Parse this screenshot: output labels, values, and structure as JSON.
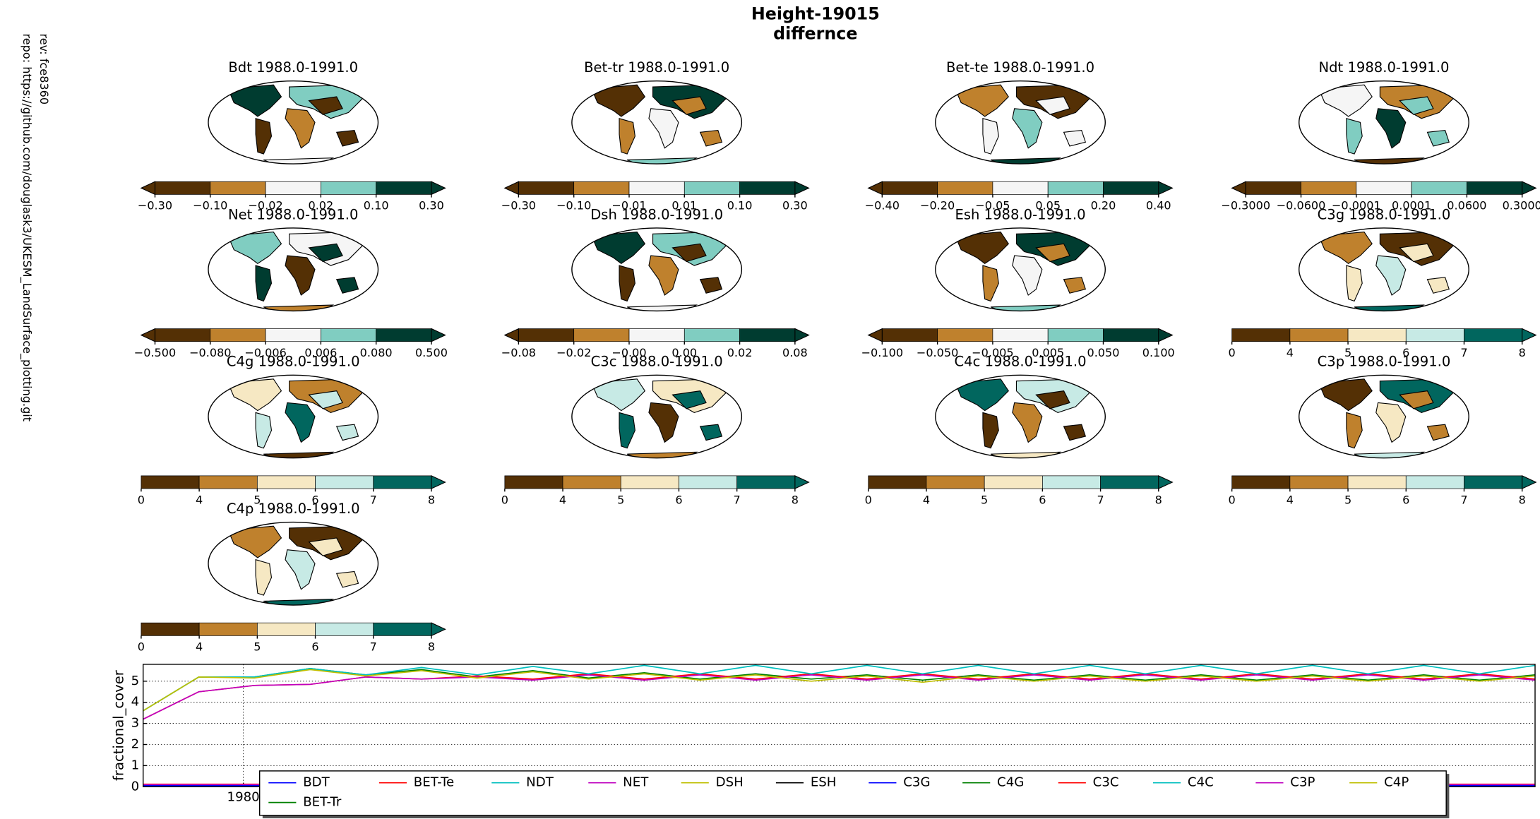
{
  "header": {
    "title": "Height-19015",
    "subtitle": "differnce",
    "rev": "rev:  fce8360",
    "repo": "repo: https://github.com/douglask3/UKESM_LandSurface_plotting.git"
  },
  "panels": [
    {
      "title": "Bdt 1988.0-1991.0",
      "extend": "both",
      "colors": [
        "#543005",
        "#bf812d",
        "#f5f5f5",
        "#80cdc1",
        "#003c30"
      ],
      "ticks": [
        {
          "value": -0.3,
          "label": "−0.30"
        },
        {
          "value": -0.1,
          "label": "−0.10"
        },
        {
          "value": -0.02,
          "label": "−0.02"
        },
        {
          "value": 0.02,
          "label": "0.02"
        },
        {
          "value": 0.1,
          "label": "0.10"
        },
        {
          "value": 0.3,
          "label": "0.30"
        }
      ]
    },
    {
      "title": "Bet-tr 1988.0-1991.0",
      "extend": "both",
      "colors": [
        "#543005",
        "#bf812d",
        "#f5f5f5",
        "#80cdc1",
        "#003c30"
      ],
      "ticks": [
        {
          "value": -0.3,
          "label": "−0.30"
        },
        {
          "value": -0.1,
          "label": "−0.10"
        },
        {
          "value": -0.01,
          "label": "−0.01"
        },
        {
          "value": 0.01,
          "label": "0.01"
        },
        {
          "value": 0.1,
          "label": "0.10"
        },
        {
          "value": 0.3,
          "label": "0.30"
        }
      ]
    },
    {
      "title": "Bet-te 1988.0-1991.0",
      "extend": "both",
      "colors": [
        "#543005",
        "#bf812d",
        "#f5f5f5",
        "#80cdc1",
        "#003c30"
      ],
      "ticks": [
        {
          "value": -0.4,
          "label": "−0.40"
        },
        {
          "value": -0.2,
          "label": "−0.20"
        },
        {
          "value": -0.05,
          "label": "−0.05"
        },
        {
          "value": 0.05,
          "label": "0.05"
        },
        {
          "value": 0.2,
          "label": "0.20"
        },
        {
          "value": 0.4,
          "label": "0.40"
        }
      ]
    },
    {
      "title": "Ndt 1988.0-1991.0",
      "extend": "both",
      "colors": [
        "#543005",
        "#bf812d",
        "#f5f5f5",
        "#80cdc1",
        "#003c30"
      ],
      "ticks": [
        {
          "value": -0.3,
          "label": "−0.3000"
        },
        {
          "value": -0.06,
          "label": "−0.0600"
        },
        {
          "value": -0.0001,
          "label": "−0.0001"
        },
        {
          "value": 0.0001,
          "label": "0.0001"
        },
        {
          "value": 0.06,
          "label": "0.0600"
        },
        {
          "value": 0.3,
          "label": "0.3000"
        }
      ]
    },
    {
      "title": "Net 1988.0-1991.0",
      "extend": "both",
      "colors": [
        "#543005",
        "#bf812d",
        "#f5f5f5",
        "#80cdc1",
        "#003c30"
      ],
      "ticks": [
        {
          "value": -0.5,
          "label": "−0.500"
        },
        {
          "value": -0.08,
          "label": "−0.080"
        },
        {
          "value": -0.006,
          "label": "−0.006"
        },
        {
          "value": 0.006,
          "label": "0.006"
        },
        {
          "value": 0.08,
          "label": "0.080"
        },
        {
          "value": 0.5,
          "label": "0.500"
        }
      ]
    },
    {
      "title": "Dsh 1988.0-1991.0",
      "extend": "both",
      "colors": [
        "#543005",
        "#bf812d",
        "#f5f5f5",
        "#80cdc1",
        "#003c30"
      ],
      "ticks": [
        {
          "value": -0.08,
          "label": "−0.08"
        },
        {
          "value": -0.02,
          "label": "−0.02"
        },
        {
          "value": -0.001,
          "label": "−0.00"
        },
        {
          "value": 0.001,
          "label": "0.00"
        },
        {
          "value": 0.02,
          "label": "0.02"
        },
        {
          "value": 0.08,
          "label": "0.08"
        }
      ]
    },
    {
      "title": "Esh 1988.0-1991.0",
      "extend": "both",
      "colors": [
        "#543005",
        "#bf812d",
        "#f5f5f5",
        "#80cdc1",
        "#003c30"
      ],
      "ticks": [
        {
          "value": -0.1,
          "label": "−0.100"
        },
        {
          "value": -0.05,
          "label": "−0.050"
        },
        {
          "value": -0.005,
          "label": "−0.005"
        },
        {
          "value": 0.005,
          "label": "0.005"
        },
        {
          "value": 0.05,
          "label": "0.050"
        },
        {
          "value": 0.1,
          "label": "0.100"
        }
      ]
    },
    {
      "title": "C3g 1988.0-1991.0",
      "extend": "max",
      "colors": [
        "#543005",
        "#bf812d",
        "#f6e8c3",
        "#c7eae5",
        "#01665e"
      ],
      "ticks": [
        0,
        4,
        5,
        6,
        7,
        8
      ]
    },
    {
      "title": "C4g 1988.0-1991.0",
      "extend": "max",
      "colors": [
        "#543005",
        "#bf812d",
        "#f6e8c3",
        "#c7eae5",
        "#01665e"
      ],
      "ticks": [
        0,
        4,
        5,
        6,
        7,
        8
      ]
    },
    {
      "title": "C3c 1988.0-1991.0",
      "extend": "max",
      "colors": [
        "#543005",
        "#bf812d",
        "#f6e8c3",
        "#c7eae5",
        "#01665e"
      ],
      "ticks": [
        0,
        4,
        5,
        6,
        7,
        8
      ]
    },
    {
      "title": "C4c 1988.0-1991.0",
      "extend": "max",
      "colors": [
        "#543005",
        "#bf812d",
        "#f6e8c3",
        "#c7eae5",
        "#01665e"
      ],
      "ticks": [
        0,
        4,
        5,
        6,
        7,
        8
      ]
    },
    {
      "title": "C3p 1988.0-1991.0",
      "extend": "max",
      "colors": [
        "#543005",
        "#bf812d",
        "#f6e8c3",
        "#c7eae5",
        "#01665e"
      ],
      "ticks": [
        0,
        4,
        5,
        6,
        7,
        8
      ]
    },
    {
      "title": "C4p 1988.0-1991.0",
      "extend": "max",
      "colors": [
        "#543005",
        "#bf812d",
        "#f6e8c3",
        "#c7eae5",
        "#01665e"
      ],
      "ticks": [
        0,
        4,
        5,
        6,
        7,
        8
      ]
    }
  ],
  "chart_data": {
    "type": "line",
    "ylabel": "fractional_cover",
    "xlim": [
      1977.75,
      2009
    ],
    "ylim": [
      0,
      5.8
    ],
    "yticks": [
      0,
      1,
      2,
      3,
      4,
      5
    ],
    "xticks": [
      1980
    ],
    "grid": true,
    "x": [
      1977.75,
      1979,
      1980.25,
      1981.5,
      1982.75,
      1984,
      1985.25,
      1986.5,
      1987.75,
      1989,
      1990.25,
      1991.5,
      1992.75,
      1994,
      1995.25,
      1996.5,
      1997.75,
      1999,
      2000.25,
      2001.5,
      2002.75,
      2004,
      2005.25,
      2006.5,
      2007.75,
      2009
    ],
    "series": [
      {
        "name": "BDT",
        "color": "#0000ff",
        "values": [
          0.05,
          0.05,
          0.05,
          0.05,
          0.05,
          0.05,
          0.05,
          0.05,
          0.05,
          0.05,
          0.05,
          0.05,
          0.05,
          0.05,
          0.05,
          0.05,
          0.05,
          0.05,
          0.05,
          0.05,
          0.05,
          0.05,
          0.05,
          0.05,
          0.05,
          0.05
        ]
      },
      {
        "name": "BET-Tr",
        "color": "#008000",
        "values": [
          0.05,
          0.05,
          0.05,
          0.05,
          0.05,
          0.05,
          0.05,
          0.05,
          0.05,
          0.05,
          0.05,
          0.05,
          0.05,
          0.05,
          0.05,
          0.05,
          0.05,
          0.05,
          0.05,
          0.05,
          0.05,
          0.05,
          0.05,
          0.05,
          0.05,
          0.05
        ]
      },
      {
        "name": "BET-Te",
        "color": "#ff0000",
        "values": [
          0.12,
          0.12,
          0.12,
          0.12,
          0.12,
          0.12,
          0.12,
          0.12,
          0.12,
          0.12,
          0.12,
          0.12,
          0.12,
          0.12,
          0.12,
          0.12,
          0.12,
          0.12,
          0.12,
          0.12,
          0.12,
          0.12,
          0.12,
          0.12,
          0.12,
          0.12
        ]
      },
      {
        "name": "NDT",
        "color": "#00bfbf",
        "values": [
          0.05,
          0.05,
          0.05,
          0.05,
          0.05,
          0.05,
          0.05,
          0.05,
          0.05,
          0.05,
          0.05,
          0.05,
          0.05,
          0.05,
          0.05,
          0.05,
          0.05,
          0.05,
          0.05,
          0.05,
          0.05,
          0.05,
          0.05,
          0.05,
          0.05,
          0.05
        ]
      },
      {
        "name": "NET",
        "color": "#bf00bf",
        "values": [
          0.1,
          0.1,
          0.1,
          0.1,
          0.1,
          0.1,
          0.1,
          0.1,
          0.1,
          0.1,
          0.1,
          0.1,
          0.1,
          0.1,
          0.1,
          0.1,
          0.1,
          0.1,
          0.1,
          0.1,
          0.1,
          0.1,
          0.1,
          0.1,
          0.1,
          0.1
        ]
      },
      {
        "name": "DSH",
        "color": "#bfbf00",
        "values": [
          0.05,
          0.05,
          0.05,
          0.05,
          0.05,
          0.05,
          0.05,
          0.05,
          0.05,
          0.05,
          0.05,
          0.05,
          0.05,
          0.05,
          0.05,
          0.05,
          0.05,
          0.05,
          0.05,
          0.05,
          0.05,
          0.05,
          0.05,
          0.05,
          0.05,
          0.05
        ]
      },
      {
        "name": "ESH",
        "color": "#000000",
        "values": [
          0.05,
          0.05,
          0.05,
          0.05,
          0.05,
          0.05,
          0.05,
          0.05,
          0.05,
          0.05,
          0.05,
          0.05,
          0.05,
          0.05,
          0.05,
          0.05,
          0.05,
          0.05,
          0.05,
          0.05,
          0.05,
          0.05,
          0.05,
          0.05,
          0.05,
          0.05
        ]
      },
      {
        "name": "C3G",
        "color": "#0000ff",
        "values": [
          0.05,
          0.05,
          0.05,
          0.05,
          0.05,
          0.05,
          0.05,
          0.05,
          0.05,
          0.05,
          0.05,
          0.05,
          0.05,
          0.05,
          0.05,
          0.05,
          0.05,
          0.05,
          0.05,
          0.05,
          0.05,
          0.05,
          0.05,
          0.05,
          0.05,
          0.05
        ]
      },
      {
        "name": "C4G",
        "color": "#008000",
        "values": [
          3.6,
          5.2,
          5.2,
          5.6,
          5.3,
          5.55,
          5.2,
          5.5,
          5.15,
          5.4,
          5.1,
          5.35,
          5.1,
          5.3,
          5.05,
          5.3,
          5.05,
          5.3,
          5.05,
          5.3,
          5.05,
          5.3,
          5.05,
          5.3,
          5.05,
          5.3
        ]
      },
      {
        "name": "C3C",
        "color": "#ff0000",
        "values": [
          3.2,
          4.5,
          4.8,
          4.85,
          5.2,
          5.1,
          5.25,
          5.1,
          5.35,
          5.1,
          5.35,
          5.1,
          5.35,
          5.1,
          5.35,
          5.1,
          5.35,
          5.1,
          5.35,
          5.1,
          5.35,
          5.1,
          5.35,
          5.1,
          5.35,
          5.1
        ]
      },
      {
        "name": "C4C",
        "color": "#00bfbf",
        "values": [
          3.6,
          5.2,
          5.2,
          5.6,
          5.3,
          5.65,
          5.3,
          5.7,
          5.35,
          5.75,
          5.35,
          5.75,
          5.35,
          5.75,
          5.35,
          5.75,
          5.35,
          5.75,
          5.35,
          5.75,
          5.35,
          5.75,
          5.35,
          5.75,
          5.35,
          5.75
        ]
      },
      {
        "name": "C3P",
        "color": "#bf00bf",
        "values": [
          3.2,
          4.5,
          4.8,
          4.85,
          5.2,
          5.1,
          5.2,
          5.05,
          5.3,
          5.05,
          5.3,
          5.05,
          5.3,
          5.05,
          5.3,
          5.05,
          5.3,
          5.05,
          5.3,
          5.05,
          5.3,
          5.05,
          5.3,
          5.05,
          5.3,
          5.05
        ]
      },
      {
        "name": "C4P",
        "color": "#bfbf00",
        "values": [
          3.6,
          5.2,
          5.15,
          5.55,
          5.25,
          5.5,
          5.15,
          5.45,
          5.1,
          5.35,
          5.05,
          5.3,
          5.0,
          5.25,
          4.95,
          5.25,
          5.0,
          5.25,
          5.0,
          5.25,
          5.0,
          5.25,
          5.0,
          5.25,
          5.0,
          5.25
        ]
      }
    ]
  }
}
